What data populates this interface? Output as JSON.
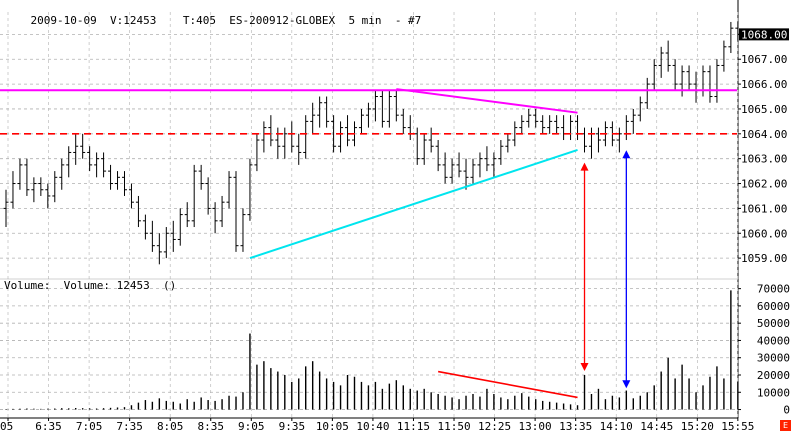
{
  "header": {
    "date": "2009-10-09",
    "volume_text": "V:12453",
    "ticks_text": "T:405",
    "symbol": "ES-200912-GLOBEX",
    "interval": "5 min",
    "chart_no": "- #7"
  },
  "volume_panel": {
    "label": "Volume:  Volume: 12453  ()"
  },
  "corner_button": "E",
  "colors": {
    "bars": "#000000",
    "resistance": "#ff00ff",
    "dashed_level": "#ff0000",
    "trend_support": "#00e5ee",
    "trend_resistance": "#ff00ff",
    "volume_trend": "#ff0000",
    "arrow_red": "#ff0000",
    "arrow_blue": "#0000ff",
    "grid": "#b0b0b0",
    "highlight_bg": "#000000",
    "highlight_fg": "#ffffff"
  },
  "chart_data": [
    {
      "type": "ohlc",
      "panel": "price",
      "y_ticks": [
        1059,
        1060,
        1061,
        1062,
        1063,
        1064,
        1065,
        1066,
        1067,
        1068
      ],
      "y_tick_labels": [
        "1059.00",
        "1060.00",
        "1061.00",
        "1062.00",
        "1063.00",
        "1064.00",
        "1065.00",
        "1066.00",
        "1067.00",
        "1068.00"
      ],
      "last_price_label": "1068.00",
      "ylim": [
        1058.2,
        1068.9
      ],
      "grid": "dashed",
      "x_tick_labels": [
        "05",
        "6:35",
        "7:05",
        "7:35",
        "8:05",
        "8:35",
        "9:05",
        "9:35",
        "10:05",
        "10:40",
        "11:15",
        "11:50",
        "12:25",
        "13:00",
        "13:35",
        "14:10",
        "14:45",
        "15:20",
        "15:55"
      ],
      "bars": [
        [
          1061.0,
          1061.75,
          1060.25,
          1061.25
        ],
        [
          1061.25,
          1062.5,
          1061.0,
          1062.0
        ],
        [
          1062.0,
          1063.0,
          1061.75,
          1062.75
        ],
        [
          1062.75,
          1063.0,
          1061.5,
          1061.75
        ],
        [
          1061.75,
          1062.25,
          1061.25,
          1062.0
        ],
        [
          1062.0,
          1062.25,
          1061.5,
          1061.75
        ],
        [
          1061.75,
          1062.0,
          1061.0,
          1061.5
        ],
        [
          1061.5,
          1062.5,
          1061.25,
          1062.25
        ],
        [
          1062.25,
          1063.0,
          1061.75,
          1062.75
        ],
        [
          1062.75,
          1063.5,
          1062.25,
          1063.25
        ],
        [
          1063.25,
          1064.0,
          1062.75,
          1063.5
        ],
        [
          1063.5,
          1064.0,
          1063.0,
          1063.25
        ],
        [
          1063.25,
          1063.5,
          1062.5,
          1062.75
        ],
        [
          1062.75,
          1063.25,
          1062.25,
          1063.0
        ],
        [
          1063.0,
          1063.25,
          1062.25,
          1062.5
        ],
        [
          1062.5,
          1062.75,
          1061.75,
          1062.0
        ],
        [
          1062.0,
          1062.5,
          1061.75,
          1062.25
        ],
        [
          1062.25,
          1062.5,
          1061.5,
          1061.75
        ],
        [
          1061.75,
          1062.0,
          1061.0,
          1061.25
        ],
        [
          1061.25,
          1061.5,
          1060.25,
          1060.5
        ],
        [
          1060.5,
          1060.75,
          1059.75,
          1060.0
        ],
        [
          1060.0,
          1060.5,
          1059.25,
          1059.5
        ],
        [
          1059.5,
          1060.0,
          1058.75,
          1059.25
        ],
        [
          1059.25,
          1060.25,
          1059.0,
          1060.0
        ],
        [
          1060.0,
          1060.5,
          1059.25,
          1059.75
        ],
        [
          1059.75,
          1061.0,
          1059.5,
          1060.75
        ],
        [
          1060.75,
          1061.25,
          1060.25,
          1060.5
        ],
        [
          1060.5,
          1062.75,
          1060.25,
          1062.5
        ],
        [
          1062.5,
          1062.75,
          1061.75,
          1062.0
        ],
        [
          1062.0,
          1062.25,
          1060.75,
          1061.0
        ],
        [
          1061.0,
          1061.25,
          1060.0,
          1060.5
        ],
        [
          1060.5,
          1061.5,
          1060.25,
          1061.25
        ],
        [
          1061.25,
          1062.5,
          1061.0,
          1062.25
        ],
        [
          1062.25,
          1062.5,
          1059.25,
          1059.5
        ],
        [
          1059.5,
          1061.0,
          1059.25,
          1060.75
        ],
        [
          1060.75,
          1063.0,
          1060.5,
          1062.75
        ],
        [
          1062.75,
          1064.0,
          1062.5,
          1063.75
        ],
        [
          1063.75,
          1064.5,
          1063.25,
          1064.25
        ],
        [
          1064.25,
          1064.75,
          1063.5,
          1063.75
        ],
        [
          1063.75,
          1064.25,
          1063.0,
          1063.5
        ],
        [
          1063.5,
          1064.25,
          1063.0,
          1064.0
        ],
        [
          1064.0,
          1064.5,
          1063.25,
          1063.5
        ],
        [
          1063.5,
          1064.0,
          1062.75,
          1063.25
        ],
        [
          1063.25,
          1064.75,
          1063.0,
          1064.5
        ],
        [
          1064.5,
          1065.25,
          1064.0,
          1064.75
        ],
        [
          1064.75,
          1065.5,
          1064.25,
          1065.25
        ],
        [
          1065.25,
          1065.5,
          1064.25,
          1064.5
        ],
        [
          1064.5,
          1064.75,
          1063.25,
          1063.5
        ],
        [
          1063.5,
          1064.5,
          1063.25,
          1064.25
        ],
        [
          1064.25,
          1064.75,
          1063.5,
          1063.75
        ],
        [
          1063.75,
          1064.5,
          1063.5,
          1064.25
        ],
        [
          1064.25,
          1065.0,
          1064.0,
          1064.75
        ],
        [
          1064.75,
          1065.25,
          1064.25,
          1065.0
        ],
        [
          1065.0,
          1065.75,
          1064.5,
          1065.5
        ],
        [
          1065.5,
          1065.75,
          1064.25,
          1064.5
        ],
        [
          1064.5,
          1065.75,
          1064.25,
          1065.5
        ],
        [
          1065.5,
          1065.75,
          1064.5,
          1064.75
        ],
        [
          1064.75,
          1065.0,
          1064.0,
          1064.25
        ],
        [
          1064.25,
          1064.75,
          1063.75,
          1064.0
        ],
        [
          1064.0,
          1064.25,
          1062.75,
          1063.0
        ],
        [
          1063.0,
          1064.0,
          1062.75,
          1063.75
        ],
        [
          1063.75,
          1064.25,
          1063.25,
          1063.5
        ],
        [
          1063.5,
          1063.75,
          1062.5,
          1062.75
        ],
        [
          1062.75,
          1063.25,
          1062.0,
          1062.25
        ],
        [
          1062.25,
          1063.0,
          1062.0,
          1062.75
        ],
        [
          1062.75,
          1063.25,
          1062.25,
          1062.5
        ],
        [
          1062.5,
          1063.0,
          1061.75,
          1062.25
        ],
        [
          1062.25,
          1063.0,
          1062.0,
          1062.75
        ],
        [
          1062.75,
          1063.25,
          1062.25,
          1063.0
        ],
        [
          1063.0,
          1063.5,
          1062.5,
          1062.75
        ],
        [
          1062.75,
          1063.25,
          1062.25,
          1063.0
        ],
        [
          1063.0,
          1063.75,
          1062.75,
          1063.5
        ],
        [
          1063.5,
          1064.0,
          1063.25,
          1063.75
        ],
        [
          1063.75,
          1064.5,
          1063.5,
          1064.25
        ],
        [
          1064.25,
          1064.75,
          1064.0,
          1064.5
        ],
        [
          1064.5,
          1065.0,
          1064.25,
          1064.75
        ],
        [
          1064.75,
          1065.0,
          1064.25,
          1064.5
        ],
        [
          1064.5,
          1064.75,
          1064.0,
          1064.25
        ],
        [
          1064.25,
          1064.75,
          1064.0,
          1064.5
        ],
        [
          1064.5,
          1064.75,
          1064.0,
          1064.25
        ],
        [
          1064.25,
          1064.75,
          1063.75,
          1064.0
        ],
        [
          1064.0,
          1064.75,
          1063.75,
          1064.5
        ],
        [
          1064.5,
          1064.75,
          1063.75,
          1064.0
        ],
        [
          1064.0,
          1064.25,
          1063.25,
          1063.5
        ],
        [
          1063.5,
          1064.25,
          1063.0,
          1064.0
        ],
        [
          1064.0,
          1064.25,
          1063.25,
          1063.75
        ],
        [
          1063.75,
          1064.5,
          1063.5,
          1064.25
        ],
        [
          1064.25,
          1064.5,
          1063.5,
          1063.75
        ],
        [
          1063.75,
          1064.25,
          1063.25,
          1064.0
        ],
        [
          1064.0,
          1064.75,
          1063.75,
          1064.5
        ],
        [
          1064.5,
          1065.0,
          1064.0,
          1064.75
        ],
        [
          1064.75,
          1065.5,
          1064.5,
          1065.25
        ],
        [
          1065.25,
          1066.25,
          1065.0,
          1066.0
        ],
        [
          1066.0,
          1067.0,
          1065.75,
          1066.75
        ],
        [
          1066.75,
          1067.5,
          1066.25,
          1067.25
        ],
        [
          1067.25,
          1067.75,
          1066.5,
          1066.75
        ],
        [
          1066.75,
          1067.0,
          1065.75,
          1066.0
        ],
        [
          1066.0,
          1066.75,
          1065.5,
          1066.5
        ],
        [
          1066.5,
          1066.75,
          1065.75,
          1066.0
        ],
        [
          1066.0,
          1066.5,
          1065.25,
          1065.75
        ],
        [
          1065.75,
          1066.75,
          1065.5,
          1066.5
        ],
        [
          1066.5,
          1066.75,
          1065.25,
          1065.5
        ],
        [
          1065.5,
          1067.0,
          1065.25,
          1066.75
        ],
        [
          1066.75,
          1067.75,
          1066.5,
          1067.5
        ],
        [
          1067.5,
          1068.5,
          1067.25,
          1068.25
        ],
        [
          1068.25,
          1068.5,
          1067.75,
          1068.0
        ]
      ],
      "resistance_level": 1065.75,
      "dashed_level": 1064.0,
      "support_trendline": {
        "from": [
          35,
          1059.0
        ],
        "to": [
          82,
          1063.35
        ]
      },
      "resistance_trendline": {
        "from": [
          56,
          1065.8
        ],
        "to": [
          82,
          1064.85
        ]
      }
    },
    {
      "type": "bar",
      "panel": "volume",
      "y_ticks": [
        0,
        10000,
        20000,
        30000,
        40000,
        50000,
        60000,
        70000
      ],
      "y_tick_labels": [
        "0",
        "10000",
        "20000",
        "30000",
        "40000",
        "50000",
        "60000",
        "70000"
      ],
      "ylim": [
        -2000,
        75000
      ],
      "values": [
        300,
        400,
        500,
        600,
        500,
        400,
        500,
        600,
        800,
        700,
        900,
        800,
        700,
        600,
        800,
        1000,
        1200,
        1400,
        2500,
        4000,
        5500,
        4500,
        6500,
        5000,
        4500,
        3500,
        6000,
        4500,
        7000,
        5500,
        5000,
        6000,
        8000,
        7500,
        10000,
        44000,
        26000,
        28000,
        24000,
        22000,
        20000,
        16000,
        18000,
        25000,
        28000,
        22000,
        18000,
        16000,
        14000,
        20000,
        19000,
        16000,
        14000,
        16000,
        12000,
        15000,
        17000,
        14000,
        12000,
        11000,
        12000,
        10000,
        9000,
        8000,
        7000,
        6000,
        8000,
        9000,
        7500,
        12000,
        9000,
        7000,
        6000,
        8000,
        9500,
        7500,
        6000,
        5000,
        4500,
        4000,
        3500,
        3000,
        2500,
        20000,
        9000,
        12000,
        6000,
        8000,
        7000,
        11000,
        6500,
        8000,
        10000,
        14000,
        22000,
        30000,
        18000,
        26000,
        18000,
        10000,
        14000,
        19000,
        25000,
        18000,
        69000,
        16000
      ],
      "trendline": {
        "from": [
          62,
          22000
        ],
        "to": [
          82,
          7000
        ]
      },
      "arrows": [
        {
          "color_key": "arrow_red",
          "bar_index": 83,
          "price_top": 1063.0,
          "volume_bottom": 20000
        },
        {
          "color_key": "arrow_blue",
          "bar_index": 89,
          "price_top": 1063.5,
          "volume_bottom": 10000
        }
      ]
    }
  ]
}
